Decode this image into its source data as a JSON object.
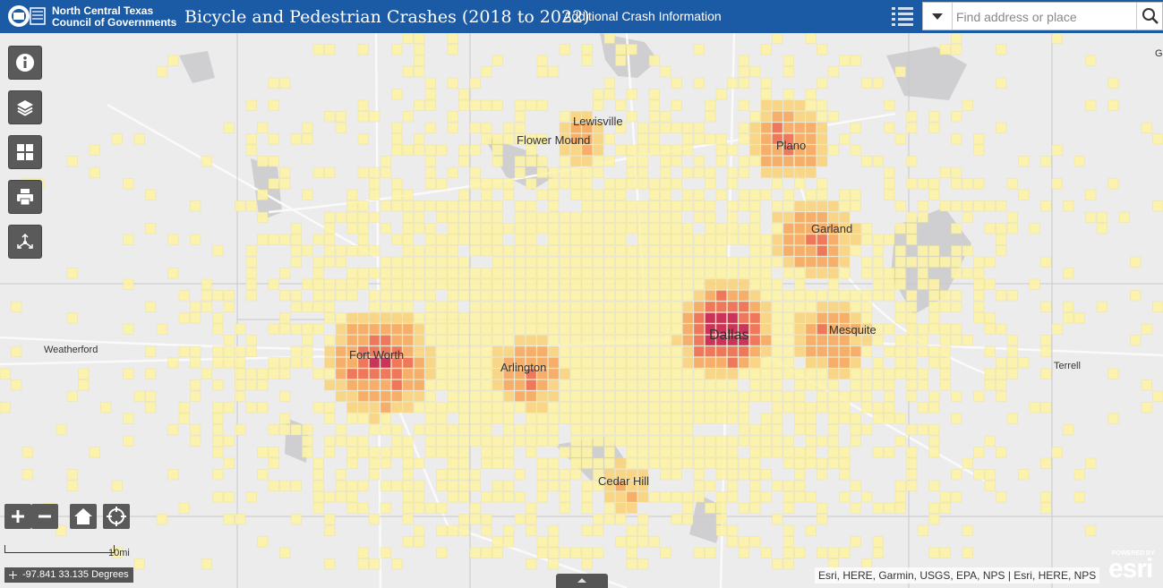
{
  "header": {
    "org_line1": "North Central Texas",
    "org_line2": "Council of Governments",
    "title": "Bicycle and Pedestrian Crashes (2018 to 2022)",
    "additional_info": "Additional Crash Information",
    "bg_color": "#1b5aa5"
  },
  "search": {
    "placeholder": "Find address or place",
    "value": ""
  },
  "icons": [
    "logo",
    "list-icon",
    "chevron-down-icon",
    "search-icon",
    "info-icon",
    "layers-icon",
    "basemap-gallery-icon",
    "print-icon",
    "share-icon",
    "zoom-in-icon",
    "zoom-out-icon",
    "home-icon",
    "locate-icon",
    "coordinates-icon",
    "expand-panel-icon"
  ],
  "map": {
    "cities": [
      "Lewisville",
      "Flower Mound",
      "Plano",
      "Garland",
      "Dallas",
      "Mesquite",
      "Fort Worth",
      "Arlington",
      "Weatherford",
      "Terrell",
      "Cedar Hill",
      "G"
    ],
    "heat_colors": [
      "#fdf3a6",
      "#fbd47c",
      "#f7a75c",
      "#ee6a4d",
      "#c81f4a"
    ]
  },
  "scale": {
    "label": "10mi"
  },
  "coordinates": {
    "text": "-97.841 33.135 Degrees"
  },
  "attribution": "Esri, HERE, Garmin, USGS, EPA, NPS | Esri, HERE, NPS",
  "esri_logo": {
    "powered": "POWERED BY",
    "word": "esri"
  }
}
